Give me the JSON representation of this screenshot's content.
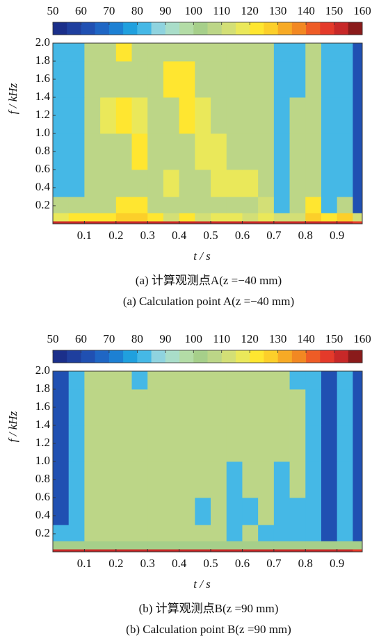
{
  "chart_data": [
    {
      "type": "heatmap",
      "xlabel": "t / s",
      "ylabel": "f / kHz",
      "captions": [
        "(a)  计算观测点A(z =−40 mm)",
        "(a)  Calculation point A(z =−40 mm)"
      ],
      "clim": [
        50,
        160
      ],
      "cticks": [
        50,
        60,
        70,
        80,
        90,
        100,
        110,
        120,
        130,
        140,
        150,
        160
      ],
      "colors": [
        "#1b2f8a",
        "#1f3f9e",
        "#2050b2",
        "#1f66c4",
        "#1d80d3",
        "#20a0de",
        "#45b8e6",
        "#8fd3df",
        "#a9ddc9",
        "#b3dca6",
        "#a6cf8a",
        "#bcd687",
        "#d3df76",
        "#eae85a",
        "#ffe630",
        "#fccf2a",
        "#f7aa25",
        "#f28822",
        "#ee5c26",
        "#e43a2a",
        "#c72828",
        "#8a1b1b"
      ],
      "xlim": [
        0,
        0.98
      ],
      "ylim": [
        0,
        2
      ],
      "xticks": [
        0.1,
        0.2,
        0.3,
        0.4,
        0.5,
        0.6,
        0.7,
        0.8,
        0.9
      ],
      "yticks": [
        0.2,
        0.4,
        0.6,
        0.8,
        {
          "value": 1,
          "label": "1.0"
        },
        1.2,
        1.4,
        1.6,
        1.8,
        {
          "value": 2,
          "label": "2.0"
        }
      ],
      "x_edges": [
        0,
        0.05,
        0.1,
        0.15,
        0.2,
        0.25,
        0.3,
        0.35,
        0.4,
        0.45,
        0.5,
        0.55,
        0.6,
        0.65,
        0.7,
        0.75,
        0.8,
        0.85,
        0.9,
        0.95,
        0.98
      ],
      "y_edges": [
        0,
        0.03,
        0.12,
        0.3,
        0.6,
        1,
        1.4,
        1.8,
        2
      ],
      "z": [
        [
          150,
          150,
          150,
          150,
          150,
          150,
          150,
          150,
          150,
          150,
          150,
          150,
          150,
          150,
          150,
          150,
          150,
          150,
          150,
          145
        ],
        [
          115,
          120,
          120,
          120,
          125,
          125,
          120,
          110,
          120,
          110,
          115,
          115,
          110,
          115,
          110,
          110,
          125,
          120,
          125,
          110
        ],
        [
          105,
          105,
          105,
          105,
          120,
          120,
          105,
          105,
          105,
          105,
          105,
          105,
          105,
          110,
          80,
          105,
          120,
          80,
          105,
          60
        ],
        [
          80,
          80,
          105,
          105,
          105,
          105,
          105,
          115,
          105,
          105,
          115,
          115,
          115,
          105,
          80,
          105,
          105,
          80,
          80,
          60
        ],
        [
          80,
          80,
          105,
          105,
          105,
          120,
          105,
          105,
          105,
          115,
          115,
          105,
          105,
          105,
          80,
          105,
          105,
          80,
          80,
          60
        ],
        [
          80,
          80,
          105,
          115,
          120,
          115,
          105,
          105,
          120,
          115,
          105,
          105,
          105,
          105,
          80,
          105,
          105,
          80,
          80,
          60
        ],
        [
          80,
          80,
          105,
          105,
          105,
          105,
          105,
          120,
          120,
          105,
          105,
          105,
          105,
          105,
          80,
          80,
          105,
          80,
          80,
          60
        ],
        [
          80,
          80,
          105,
          105,
          120,
          105,
          105,
          105,
          105,
          105,
          105,
          105,
          105,
          105,
          80,
          80,
          105,
          80,
          80,
          60
        ]
      ]
    },
    {
      "type": "heatmap",
      "xlabel": "t / s",
      "ylabel": "f / kHz",
      "captions": [
        "(b)  计算观测点B(z =90 mm)",
        "(b)  Calculation point B(z =90 mm)"
      ],
      "clim": [
        50,
        160
      ],
      "cticks": [
        50,
        60,
        70,
        80,
        90,
        100,
        110,
        120,
        130,
        140,
        150,
        160
      ],
      "colors": [
        "#1b2f8a",
        "#1f3f9e",
        "#2050b2",
        "#1f66c4",
        "#1d80d3",
        "#20a0de",
        "#45b8e6",
        "#8fd3df",
        "#a9ddc9",
        "#b3dca6",
        "#a6cf8a",
        "#bcd687",
        "#d3df76",
        "#eae85a",
        "#ffe630",
        "#fccf2a",
        "#f7aa25",
        "#f28822",
        "#ee5c26",
        "#e43a2a",
        "#c72828",
        "#8a1b1b"
      ],
      "xlim": [
        0,
        0.98
      ],
      "ylim": [
        0,
        2
      ],
      "xticks": [
        0.1,
        0.2,
        0.3,
        0.4,
        0.5,
        0.6,
        0.7,
        0.8,
        0.9
      ],
      "yticks": [
        0.2,
        0.4,
        0.6,
        0.8,
        {
          "value": 1,
          "label": "1.0"
        },
        1.2,
        1.4,
        1.6,
        1.8,
        {
          "value": 2,
          "label": "2.0"
        }
      ],
      "x_edges": [
        0,
        0.05,
        0.1,
        0.15,
        0.2,
        0.25,
        0.3,
        0.35,
        0.4,
        0.45,
        0.5,
        0.55,
        0.6,
        0.65,
        0.7,
        0.75,
        0.8,
        0.85,
        0.9,
        0.95,
        0.98
      ],
      "y_edges": [
        0,
        0.03,
        0.12,
        0.3,
        0.6,
        1,
        1.4,
        1.8,
        2
      ],
      "z": [
        [
          150,
          150,
          150,
          150,
          150,
          150,
          150,
          150,
          150,
          150,
          150,
          150,
          150,
          150,
          150,
          150,
          150,
          150,
          150,
          145
        ],
        [
          100,
          100,
          100,
          100,
          100,
          100,
          100,
          100,
          100,
          100,
          100,
          100,
          100,
          100,
          100,
          100,
          100,
          100,
          100,
          100
        ],
        [
          80,
          80,
          105,
          105,
          105,
          105,
          105,
          105,
          105,
          105,
          105,
          80,
          105,
          80,
          80,
          80,
          80,
          60,
          80,
          60
        ],
        [
          60,
          80,
          105,
          105,
          105,
          105,
          105,
          105,
          105,
          80,
          105,
          80,
          80,
          105,
          80,
          80,
          80,
          60,
          80,
          60
        ],
        [
          60,
          80,
          105,
          105,
          105,
          105,
          105,
          105,
          105,
          105,
          105,
          80,
          105,
          105,
          80,
          105,
          80,
          60,
          80,
          60
        ],
        [
          60,
          80,
          105,
          105,
          105,
          105,
          105,
          105,
          105,
          105,
          105,
          105,
          105,
          105,
          105,
          105,
          80,
          60,
          80,
          60
        ],
        [
          60,
          80,
          105,
          105,
          105,
          105,
          105,
          105,
          105,
          105,
          105,
          105,
          105,
          105,
          105,
          105,
          80,
          60,
          80,
          60
        ],
        [
          60,
          80,
          105,
          105,
          105,
          80,
          105,
          105,
          105,
          105,
          105,
          105,
          105,
          105,
          105,
          80,
          80,
          60,
          80,
          60
        ]
      ]
    }
  ]
}
